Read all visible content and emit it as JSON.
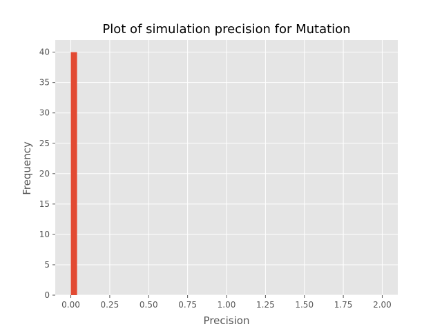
{
  "chart_data": {
    "type": "bar",
    "title": "Plot of simulation precision for Mutation",
    "xlabel": "Precision",
    "ylabel": "Frequency",
    "xlim": [
      -0.1,
      2.1
    ],
    "ylim": [
      0,
      42
    ],
    "xticks": [
      "0.00",
      "0.25",
      "0.50",
      "0.75",
      "1.00",
      "1.25",
      "1.50",
      "1.75",
      "2.00"
    ],
    "yticks": [
      "0",
      "5",
      "10",
      "15",
      "20",
      "25",
      "30",
      "35",
      "40"
    ],
    "bins": [
      {
        "x0": 0.0,
        "x1": 0.04,
        "value": 40
      }
    ],
    "grid": true,
    "colors": {
      "bar": "#E24A33",
      "plot_background": "#E5E5E5",
      "grid": "#FFFFFF"
    }
  }
}
